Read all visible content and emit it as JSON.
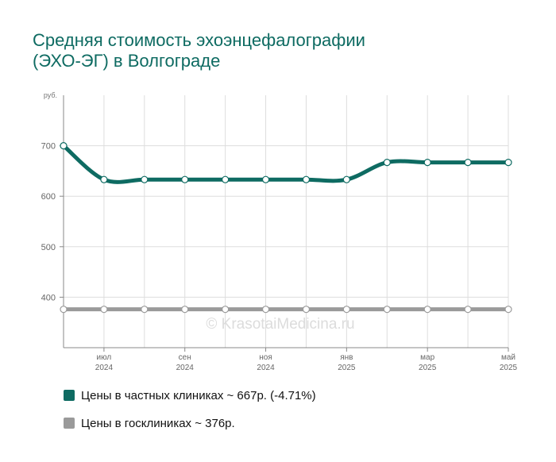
{
  "title": {
    "line1": "Средняя стоимость эхоэнцефалографии",
    "line2": "(ЭХО-ЭГ) в Волгограде"
  },
  "watermark": "© KrasotaiMedicina.ru",
  "colors": {
    "private": "#0e6b62",
    "public": "#9a9a9a",
    "title": "#0e6b62",
    "grid": "#dddddd",
    "axis": "#888888"
  },
  "chart_data": {
    "type": "line",
    "y_unit_label": "руб.",
    "ylim": [
      300,
      800
    ],
    "y_ticks": [
      400,
      500,
      600,
      700
    ],
    "grid": true,
    "x_tick_labels": [
      {
        "month": "июл",
        "year": "2024"
      },
      {
        "month": "сен",
        "year": "2024"
      },
      {
        "month": "ноя",
        "year": "2024"
      },
      {
        "month": "янв",
        "year": "2025"
      },
      {
        "month": "мар",
        "year": "2025"
      },
      {
        "month": "май",
        "year": "2025"
      }
    ],
    "x": [
      "2024-06",
      "2024-07",
      "2024-08",
      "2024-09",
      "2024-10",
      "2024-11",
      "2024-12",
      "2025-01",
      "2025-02",
      "2025-03",
      "2025-04",
      "2025-05"
    ],
    "series": [
      {
        "name": "Цены в частных клиниках",
        "values": [
          700,
          633,
          633,
          633,
          633,
          633,
          633,
          633,
          667,
          667,
          667,
          667
        ]
      },
      {
        "name": "Цены в госклиниках",
        "values": [
          376,
          376,
          376,
          376,
          376,
          376,
          376,
          376,
          376,
          376,
          376,
          376
        ]
      }
    ]
  },
  "legend": {
    "private_label": "Цены в частных клиниках ~ 667р. (-4.71%)",
    "public_label": "Цены в госклиниках ~ 376р."
  }
}
